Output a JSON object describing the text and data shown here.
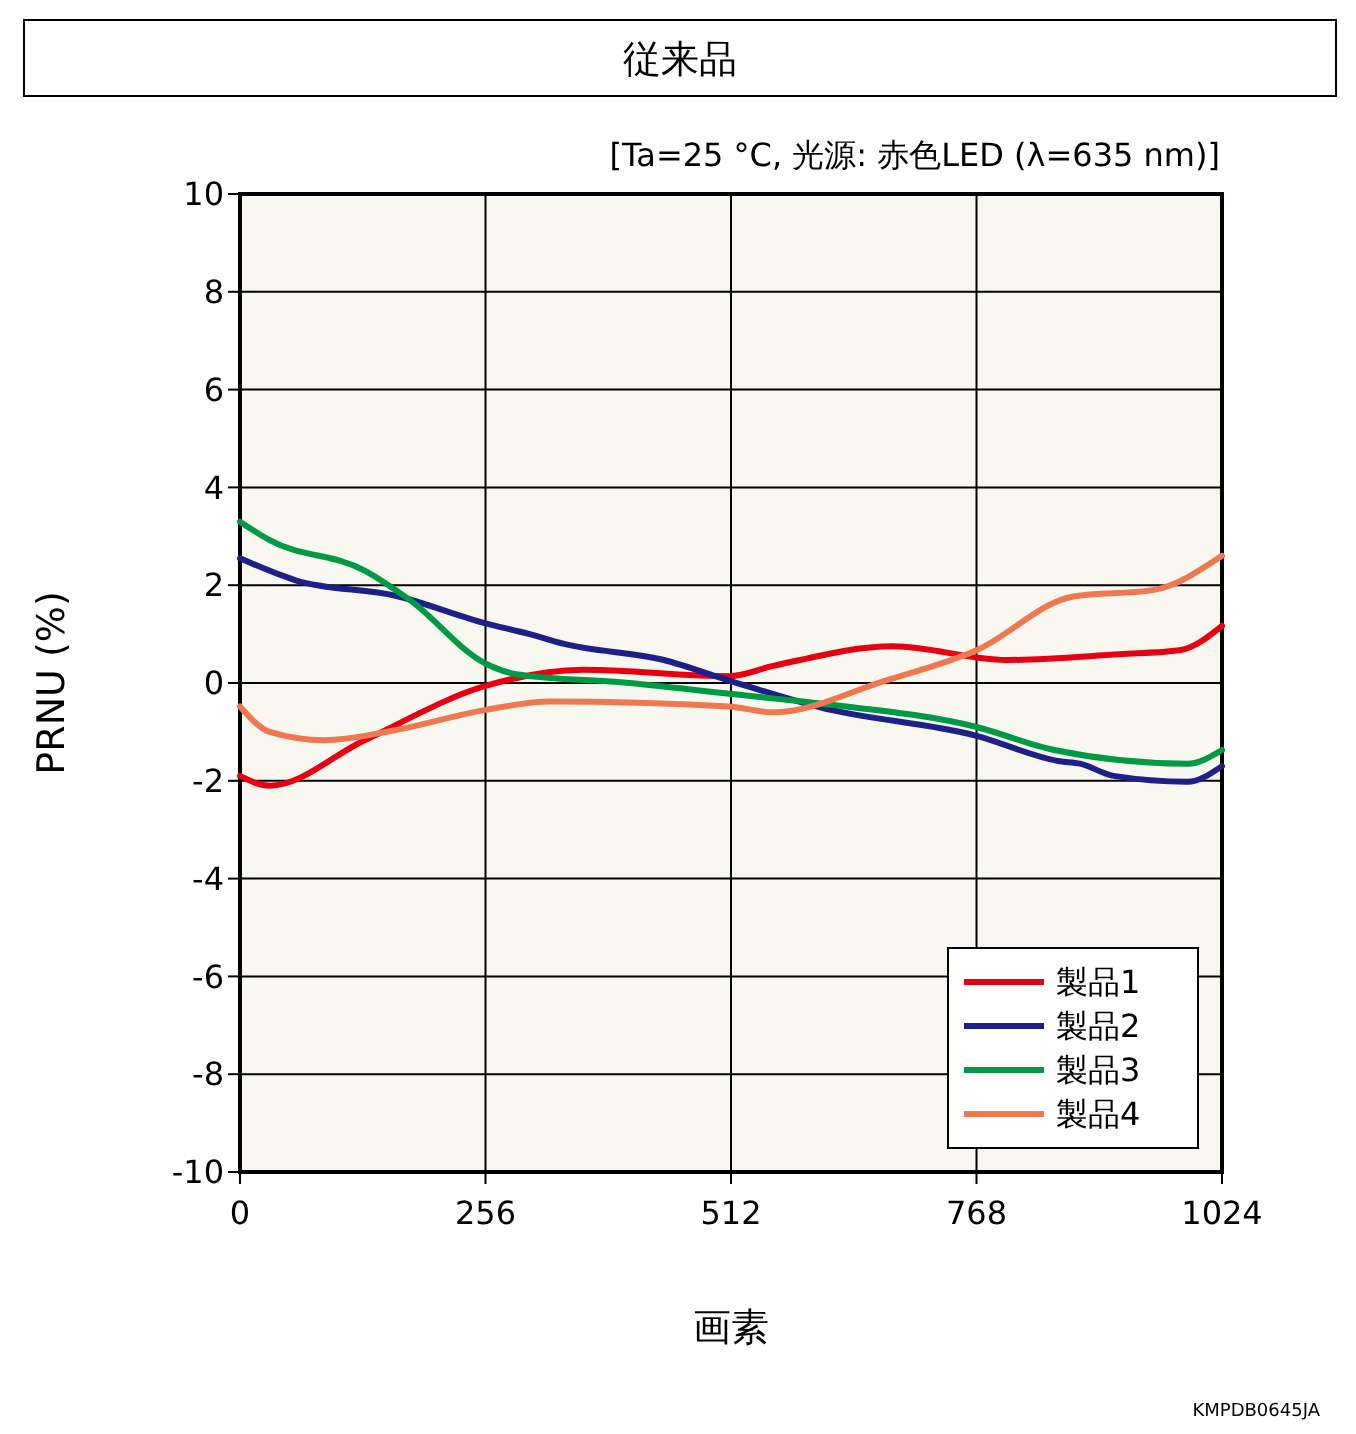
{
  "chart_data": {
    "type": "line",
    "title": "従来品",
    "subtitle": "[Ta=25 °C, 光源: 赤色LED (λ=635 nm)]",
    "xlabel": "画素",
    "ylabel": "PRNU (%)",
    "xlim": [
      0,
      1024
    ],
    "xticks": [
      0,
      256,
      512,
      768,
      1024
    ],
    "ylim": [
      -10,
      10
    ],
    "yticks": [
      -10,
      -8,
      -6,
      -4,
      -2,
      0,
      2,
      4,
      6,
      8,
      10
    ],
    "grid": true,
    "legend": "bottom right",
    "series": [
      {
        "name": "製品1",
        "color": "#e60012",
        "x": [
          0,
          31,
          130,
          256,
          358,
          510,
          556,
          681,
          799,
          917,
          980,
          1024
        ],
        "values": [
          -1.9,
          -2.1,
          -1.17,
          -0.06,
          0.27,
          0.14,
          0.35,
          0.75,
          0.47,
          0.59,
          0.67,
          1.17
        ]
      },
      {
        "name": "製品2",
        "color": "#1d2088",
        "x": [
          0,
          58,
          163,
          256,
          302,
          338,
          442,
          510,
          605,
          768,
          855,
          876,
          911,
          988,
          1024
        ],
        "values": [
          2.55,
          2.1,
          1.78,
          1.22,
          1.0,
          0.8,
          0.47,
          0.05,
          -0.5,
          -1.08,
          -1.6,
          -1.65,
          -1.9,
          -2.02,
          -1.7
        ]
      },
      {
        "name": "製品3",
        "color": "#009944",
        "x": [
          0,
          31,
          130,
          177,
          256,
          288,
          406,
          510,
          605,
          768,
          849,
          988,
          1024
        ],
        "values": [
          3.3,
          2.92,
          2.3,
          1.7,
          0.4,
          0.18,
          0,
          -0.22,
          -0.42,
          -0.9,
          -1.37,
          -1.65,
          -1.37
        ]
      },
      {
        "name": "製品4",
        "color": "#f07850",
        "x": [
          0,
          31,
          88,
          163,
          256,
          323,
          510,
          556,
          673,
          768,
          869,
          952,
          1024
        ],
        "values": [
          -0.48,
          -1.0,
          -1.17,
          -0.96,
          -0.55,
          -0.38,
          -0.48,
          -0.6,
          0.05,
          0.67,
          1.77,
          1.9,
          2.6
        ]
      }
    ],
    "annotations": [
      "KMPDB0645JA"
    ]
  }
}
